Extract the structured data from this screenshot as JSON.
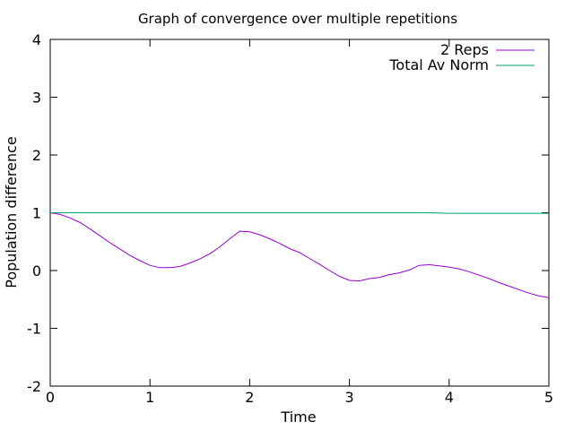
{
  "chart_data": {
    "type": "line",
    "title": "Graph of convergence over multiple repetitions",
    "xlabel": "Time",
    "ylabel": "Population difference",
    "xlim": [
      0,
      5
    ],
    "ylim": [
      -2,
      4
    ],
    "x_ticks": [
      "0",
      "1",
      "2",
      "3",
      "4",
      "5"
    ],
    "y_ticks": [
      "-2",
      "-1",
      "0",
      "1",
      "2",
      "3",
      "4"
    ],
    "grid": false,
    "legend_position": "top-right",
    "series": [
      {
        "name": "2 Reps",
        "color": "#9400d3",
        "x": [
          0,
          0.1,
          0.2,
          0.3,
          0.4,
          0.5,
          0.6,
          0.7,
          0.8,
          0.9,
          1.0,
          1.1,
          1.2,
          1.3,
          1.4,
          1.5,
          1.6,
          1.7,
          1.8,
          1.9,
          2.0,
          2.1,
          2.2,
          2.3,
          2.4,
          2.5,
          2.6,
          2.7,
          2.8,
          2.9,
          3.0,
          3.1,
          3.2,
          3.3,
          3.4,
          3.5,
          3.6,
          3.7,
          3.8,
          3.9,
          4.0,
          4.1,
          4.2,
          4.3,
          4.4,
          4.5,
          4.6,
          4.7,
          4.8,
          4.9,
          5.0
        ],
        "y": [
          1.0,
          0.97,
          0.91,
          0.83,
          0.72,
          0.6,
          0.48,
          0.37,
          0.26,
          0.17,
          0.09,
          0.05,
          0.05,
          0.07,
          0.13,
          0.2,
          0.29,
          0.41,
          0.55,
          0.68,
          0.67,
          0.62,
          0.55,
          0.47,
          0.38,
          0.31,
          0.21,
          0.11,
          0.0,
          -0.1,
          -0.17,
          -0.18,
          -0.14,
          -0.12,
          -0.07,
          -0.04,
          0.01,
          0.09,
          0.1,
          0.08,
          0.06,
          0.03,
          -0.02,
          -0.08,
          -0.14,
          -0.21,
          -0.27,
          -0.33,
          -0.39,
          -0.44,
          -0.47
        ]
      },
      {
        "name": "Total Av Norm",
        "color": "#009e73",
        "x": [
          0,
          1,
          2,
          3,
          3.8,
          4,
          5
        ],
        "y": [
          1.0,
          1.0,
          1.0,
          1.0,
          1.0,
          0.99,
          0.99
        ]
      }
    ]
  }
}
